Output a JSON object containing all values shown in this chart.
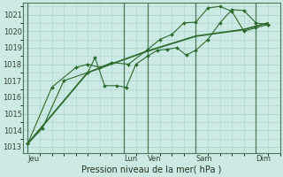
{
  "background_color": "#cceae4",
  "grid_color": "#aad4cc",
  "line_color": "#2d6a2d",
  "marker_color": "#2d6a2d",
  "ylabel_ticks": [
    1013,
    1014,
    1015,
    1016,
    1017,
    1018,
    1019,
    1020,
    1021
  ],
  "ylim": [
    1012.6,
    1021.7
  ],
  "xlabel": "Pression niveau de la mer( hPa )",
  "x_day_labels": [
    "Jeu",
    "Lun",
    "Ven",
    "Sam",
    "Dim"
  ],
  "x_day_positions": [
    0.0,
    4.0,
    5.0,
    7.0,
    9.5
  ],
  "x_vlines": [
    0.0,
    4.0,
    5.0,
    7.0,
    9.5
  ],
  "xlim": [
    -0.2,
    10.5
  ],
  "series1_x": [
    0.0,
    0.6,
    1.5,
    2.5,
    2.8,
    3.2,
    3.7,
    4.1,
    4.5,
    5.0,
    5.4,
    5.8,
    6.2,
    6.6,
    7.0,
    7.5,
    8.0,
    8.5,
    9.0,
    9.5,
    10.0
  ],
  "series1_y": [
    1013.2,
    1014.1,
    1017.0,
    1017.5,
    1018.4,
    1016.7,
    1016.7,
    1016.6,
    1018.0,
    1018.5,
    1018.85,
    1018.9,
    1019.0,
    1018.55,
    1018.85,
    1019.5,
    1020.5,
    1021.3,
    1021.25,
    1020.5,
    1020.4
  ],
  "series2_x": [
    0.0,
    1.0,
    2.0,
    2.5,
    3.0,
    3.5,
    4.2,
    5.0,
    5.5,
    6.0,
    6.5,
    7.0,
    7.5,
    8.0,
    8.5,
    9.0,
    9.5,
    10.0
  ],
  "series2_y": [
    1013.2,
    1016.6,
    1017.8,
    1018.0,
    1017.8,
    1018.1,
    1018.0,
    1018.9,
    1019.5,
    1019.8,
    1020.5,
    1020.55,
    1021.4,
    1021.5,
    1021.2,
    1020.0,
    1020.2,
    1020.4
  ],
  "series3_x": [
    0.0,
    2.5,
    5.0,
    7.0,
    9.0,
    10.0
  ],
  "series3_y": [
    1013.2,
    1017.5,
    1018.8,
    1019.7,
    1020.1,
    1020.5
  ]
}
